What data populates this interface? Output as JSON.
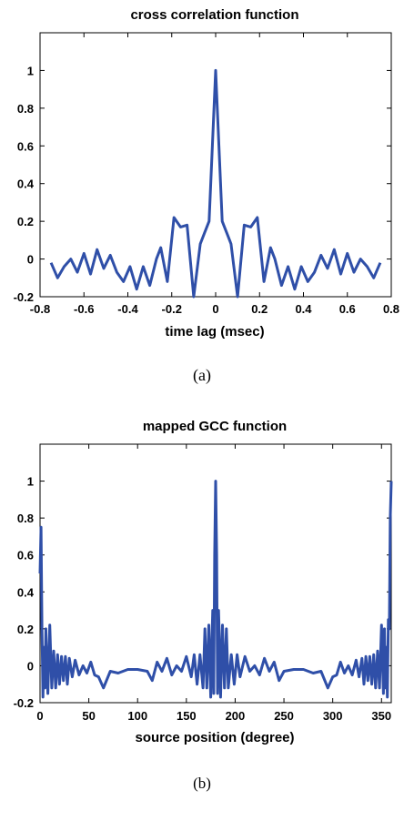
{
  "chart_data": [
    {
      "type": "line",
      "title": "cross correlation function",
      "xlabel": "time lag (msec)",
      "ylabel": "",
      "caption": "(a)",
      "xlim": [
        -0.8,
        0.8
      ],
      "ylim": [
        -0.2,
        1.2
      ],
      "xticks": [
        -0.8,
        -0.6,
        -0.4,
        -0.2,
        0,
        0.2,
        0.4,
        0.6,
        0.8
      ],
      "xtick_labels": [
        "-0.8",
        "-0.6",
        "-0.4",
        "-0.2",
        "0",
        "0.2",
        "0.4",
        "0.6",
        "0.8"
      ],
      "yticks": [
        -0.2,
        0,
        0.2,
        0.4,
        0.6,
        0.8,
        1
      ],
      "ytick_labels": [
        "-0.2",
        "0",
        "0.2",
        "0.4",
        "0.6",
        "0.8",
        "1"
      ],
      "grid": false,
      "color": "#2f4fa8",
      "series": [
        {
          "x": [
            -0.75,
            -0.72,
            -0.69,
            -0.66,
            -0.63,
            -0.6,
            -0.57,
            -0.54,
            -0.51,
            -0.48,
            -0.45,
            -0.42,
            -0.39,
            -0.36,
            -0.33,
            -0.3,
            -0.27,
            -0.25,
            -0.22,
            -0.19,
            -0.16,
            -0.13,
            -0.1,
            -0.07,
            -0.05,
            -0.03,
            -0.015,
            0,
            0.015,
            0.03,
            0.05,
            0.07,
            0.1,
            0.13,
            0.16,
            0.19,
            0.22,
            0.25,
            0.27,
            0.3,
            0.33,
            0.36,
            0.39,
            0.42,
            0.45,
            0.48,
            0.51,
            0.54,
            0.57,
            0.6,
            0.63,
            0.66,
            0.69,
            0.72,
            0.75
          ],
          "y": [
            -0.02,
            -0.1,
            -0.04,
            0.0,
            -0.07,
            0.03,
            -0.08,
            0.05,
            -0.05,
            0.02,
            -0.07,
            -0.12,
            -0.04,
            -0.16,
            -0.04,
            -0.14,
            0.0,
            0.06,
            -0.12,
            0.22,
            0.17,
            0.18,
            -0.22,
            0.08,
            0.14,
            0.2,
            0.6,
            1.0,
            0.6,
            0.2,
            0.14,
            0.08,
            -0.22,
            0.18,
            0.17,
            0.22,
            -0.12,
            0.06,
            0.0,
            -0.14,
            -0.04,
            -0.16,
            -0.04,
            -0.12,
            -0.07,
            0.02,
            -0.05,
            0.05,
            -0.08,
            0.03,
            -0.07,
            0.0,
            -0.04,
            -0.1,
            -0.02
          ]
        }
      ]
    },
    {
      "type": "line",
      "title": "mapped GCC function",
      "xlabel": "source position (degree)",
      "ylabel": "",
      "caption": "(b)",
      "xlim": [
        0,
        360
      ],
      "ylim": [
        -0.2,
        1.2
      ],
      "xticks": [
        0,
        50,
        100,
        150,
        200,
        250,
        300,
        350
      ],
      "xtick_labels": [
        "0",
        "50",
        "100",
        "150",
        "200",
        "250",
        "300",
        "350"
      ],
      "yticks": [
        -0.2,
        0,
        0.2,
        0.4,
        0.6,
        0.8,
        1
      ],
      "ytick_labels": [
        "-0.2",
        "0",
        "0.2",
        "0.4",
        "0.6",
        "0.8",
        "1"
      ],
      "grid": false,
      "color": "#2f4fa8",
      "series": [
        {
          "x": [
            0,
            1,
            2,
            3,
            4,
            5,
            6,
            8,
            10,
            12,
            14,
            16,
            18,
            20,
            22,
            24,
            26,
            28,
            30,
            33,
            36,
            40,
            44,
            48,
            52,
            56,
            60,
            65,
            72,
            80,
            90,
            100,
            110,
            115,
            120,
            125,
            130,
            135,
            140,
            145,
            150,
            155,
            158,
            161,
            164,
            167,
            169,
            171,
            173,
            175,
            176,
            177,
            178,
            179,
            180,
            181,
            182,
            183,
            184,
            185,
            187,
            189,
            191,
            193,
            196,
            199,
            202,
            205,
            210,
            215,
            220,
            225,
            230,
            235,
            240,
            245,
            250,
            260,
            270,
            280,
            288,
            295,
            300,
            304,
            308,
            312,
            316,
            320,
            324,
            327,
            330,
            332,
            334,
            336,
            338,
            340,
            342,
            344,
            346,
            348,
            350,
            352,
            353,
            354,
            355,
            356,
            357,
            358,
            359,
            360
          ],
          "y": [
            0.5,
            0.75,
            0.2,
            -0.17,
            0.1,
            -0.12,
            0.2,
            -0.15,
            0.22,
            -0.12,
            0.08,
            -0.12,
            0.06,
            -0.1,
            0.05,
            -0.08,
            0.05,
            -0.1,
            0.04,
            -0.06,
            0.03,
            -0.05,
            0.0,
            -0.04,
            0.02,
            -0.05,
            -0.06,
            -0.12,
            -0.03,
            -0.04,
            -0.02,
            -0.02,
            -0.03,
            -0.08,
            0.02,
            -0.03,
            0.04,
            -0.05,
            0.0,
            -0.03,
            0.05,
            -0.06,
            0.06,
            -0.1,
            0.06,
            -0.12,
            0.2,
            -0.12,
            0.22,
            -0.17,
            0.1,
            0.3,
            -0.15,
            0.6,
            1.0,
            0.6,
            -0.15,
            0.3,
            0.1,
            -0.17,
            0.22,
            -0.12,
            0.2,
            -0.12,
            0.06,
            -0.1,
            0.06,
            -0.06,
            0.05,
            -0.03,
            0.0,
            -0.05,
            0.04,
            -0.03,
            0.02,
            -0.08,
            -0.03,
            -0.02,
            -0.02,
            -0.04,
            -0.03,
            -0.12,
            -0.06,
            -0.05,
            0.02,
            -0.04,
            0.0,
            -0.05,
            0.03,
            -0.06,
            0.04,
            -0.1,
            0.05,
            -0.08,
            0.05,
            -0.1,
            0.06,
            -0.12,
            0.08,
            -0.12,
            0.22,
            -0.15,
            0.2,
            -0.12,
            0.1,
            -0.17,
            0.25,
            0.2,
            0.8,
            1.0
          ]
        }
      ]
    }
  ]
}
